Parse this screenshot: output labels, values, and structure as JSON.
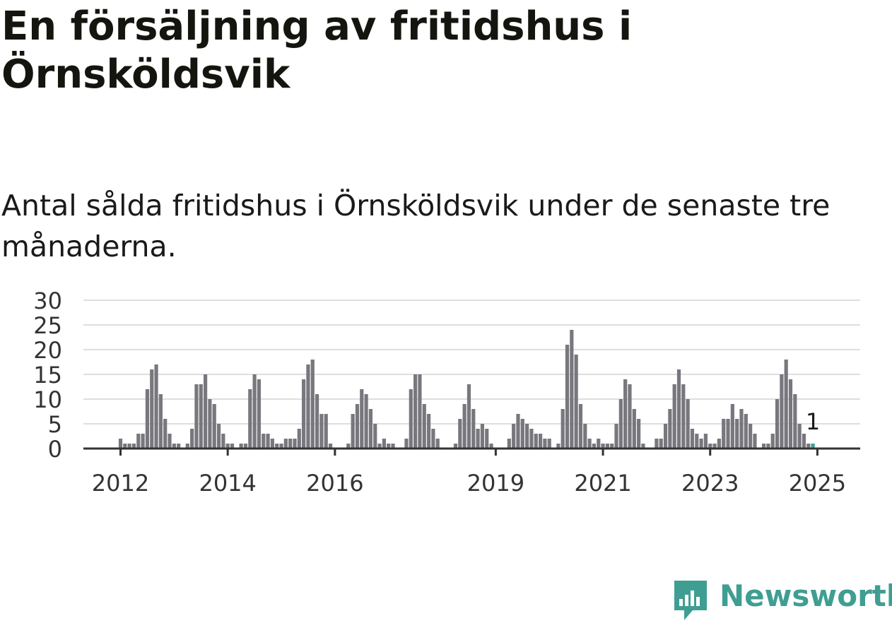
{
  "title": "En försäljning av fritidshus i Örnsköldsvik",
  "subtitle": "Antal sålda fritidshus i Örnsköldsvik under de senaste tre månaderna.",
  "brand": {
    "name": "Newsworthy",
    "color": "#3f9e92",
    "icon": "newsworthy-chart-bubble-icon"
  },
  "colors": {
    "bar": "#78777d",
    "highlight": "#3f9e92",
    "grid": "#dedede",
    "axis": "#333333"
  },
  "chart_data": {
    "type": "bar",
    "x_ticks": [
      "2012",
      "2014",
      "2016",
      "2019",
      "2021",
      "2023",
      "2025"
    ],
    "y_ticks": [
      "0",
      "5",
      "10",
      "15",
      "20",
      "25",
      "30"
    ],
    "ylim": [
      0,
      30
    ],
    "grid": true,
    "start": "2012-01",
    "values": [
      2,
      1,
      1,
      1,
      3,
      3,
      12,
      16,
      17,
      11,
      6,
      3,
      1,
      1,
      0,
      1,
      4,
      13,
      13,
      15,
      10,
      9,
      5,
      3,
      1,
      1,
      0,
      1,
      1,
      12,
      15,
      14,
      3,
      3,
      2,
      1,
      1,
      2,
      2,
      2,
      4,
      14,
      17,
      18,
      11,
      7,
      7,
      1,
      0,
      0,
      0,
      1,
      7,
      9,
      12,
      11,
      8,
      5,
      1,
      2,
      1,
      1,
      0,
      0,
      2,
      12,
      15,
      15,
      9,
      7,
      4,
      2,
      0,
      0,
      0,
      1,
      6,
      9,
      13,
      8,
      4,
      5,
      4,
      1,
      0,
      0,
      0,
      2,
      5,
      7,
      6,
      5,
      4,
      3,
      3,
      2,
      2,
      0,
      1,
      8,
      21,
      24,
      19,
      9,
      5,
      2,
      1,
      2,
      1,
      1,
      1,
      5,
      10,
      14,
      13,
      8,
      6,
      1,
      0,
      0,
      2,
      2,
      5,
      8,
      13,
      16,
      13,
      10,
      4,
      3,
      2,
      3,
      1,
      1,
      2,
      6,
      6,
      9,
      6,
      8,
      7,
      5,
      3,
      0,
      1,
      1,
      3,
      10,
      15,
      18,
      14,
      11,
      5,
      3,
      1,
      1
    ],
    "highlight_label": "1"
  }
}
